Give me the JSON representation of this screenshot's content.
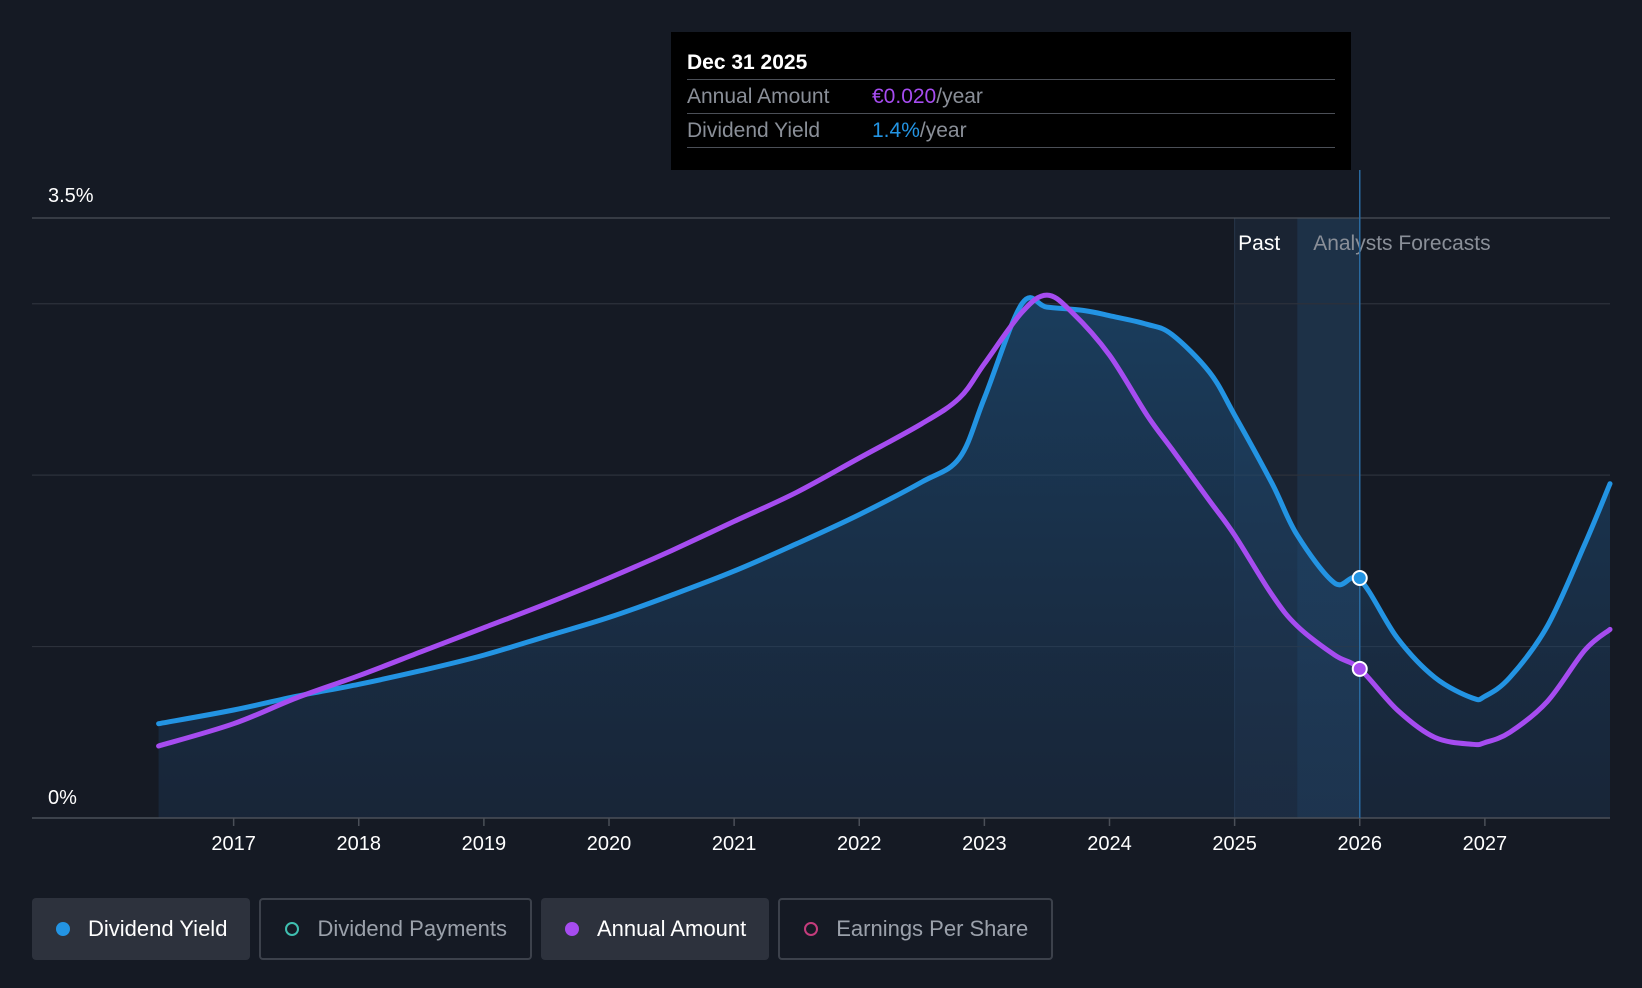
{
  "tooltip": {
    "date": "Dec 31 2025",
    "rows": [
      {
        "label": "Annual Amount",
        "value": "€0.020",
        "unit": "/year",
        "color": "#a64cf0"
      },
      {
        "label": "Dividend Yield",
        "value": "1.4%",
        "unit": "/year",
        "color": "#2394e3"
      }
    ]
  },
  "legend": [
    {
      "label": "Dividend Yield",
      "color": "#2394e3",
      "active": true
    },
    {
      "label": "Dividend Payments",
      "color": "#3fbfb0",
      "active": false
    },
    {
      "label": "Annual Amount",
      "color": "#a64cf0",
      "active": true
    },
    {
      "label": "Earnings Per Share",
      "color": "#c43c7c",
      "active": false
    }
  ],
  "chart_data": {
    "type": "line",
    "title": "",
    "xlabel": "",
    "ylabel": "",
    "ylim": [
      0,
      3.5
    ],
    "y_ticks": [
      {
        "value": 0,
        "label": "0%"
      },
      {
        "value": 3.5,
        "label": "3.5%"
      }
    ],
    "gridlines": [
      1.0,
      2.0,
      3.0,
      3.5
    ],
    "x_ticks": [
      2017,
      2018,
      2019,
      2020,
      2021,
      2022,
      2023,
      2024,
      2025,
      2026,
      2027
    ],
    "xlim": [
      2015.9,
      2028.0
    ],
    "regions": [
      {
        "label": "Past",
        "start": 2025.0,
        "end": 2025.5
      },
      {
        "label": "Analysts Forecasts",
        "start": 2025.5,
        "end": 2026.0
      }
    ],
    "marker_x": 2026.0,
    "series": [
      {
        "name": "Dividend Yield",
        "color": "#2394e3",
        "filled": true,
        "x": [
          2016.4,
          2017.0,
          2017.5,
          2018.0,
          2018.5,
          2019.0,
          2019.5,
          2020.0,
          2020.5,
          2021.0,
          2021.5,
          2022.0,
          2022.5,
          2022.8,
          2023.0,
          2023.3,
          2023.5,
          2023.8,
          2024.0,
          2024.3,
          2024.5,
          2024.8,
          2025.0,
          2025.3,
          2025.5,
          2025.8,
          2026.0,
          2026.3,
          2026.6,
          2026.9,
          2027.0,
          2027.2,
          2027.5,
          2027.8,
          2028.0
        ],
        "y": [
          0.55,
          0.63,
          0.71,
          0.78,
          0.86,
          0.95,
          1.06,
          1.17,
          1.3,
          1.44,
          1.6,
          1.77,
          1.96,
          2.1,
          2.45,
          3.0,
          2.98,
          2.96,
          2.93,
          2.88,
          2.82,
          2.6,
          2.35,
          1.95,
          1.65,
          1.37,
          1.39,
          1.05,
          0.82,
          0.7,
          0.71,
          0.82,
          1.12,
          1.6,
          1.95
        ],
        "point_value": 1.4
      },
      {
        "name": "Annual Amount",
        "color": "#a64cf0",
        "filled": false,
        "x": [
          2016.4,
          2017.0,
          2017.5,
          2018.0,
          2018.5,
          2019.0,
          2019.5,
          2020.0,
          2020.5,
          2021.0,
          2021.5,
          2022.0,
          2022.5,
          2022.8,
          2023.0,
          2023.3,
          2023.5,
          2023.7,
          2024.0,
          2024.3,
          2024.5,
          2024.8,
          2025.0,
          2025.3,
          2025.5,
          2025.8,
          2026.0,
          2026.3,
          2026.6,
          2026.9,
          2027.0,
          2027.2,
          2027.5,
          2027.8,
          2028.0
        ],
        "y": [
          0.42,
          0.55,
          0.7,
          0.83,
          0.97,
          1.11,
          1.25,
          1.4,
          1.56,
          1.73,
          1.9,
          2.1,
          2.3,
          2.45,
          2.65,
          2.95,
          3.05,
          2.95,
          2.7,
          2.35,
          2.15,
          1.85,
          1.65,
          1.3,
          1.12,
          0.95,
          0.87,
          0.63,
          0.47,
          0.43,
          0.44,
          0.5,
          0.68,
          0.98,
          1.1
        ],
        "point_value": 0.87
      }
    ]
  }
}
